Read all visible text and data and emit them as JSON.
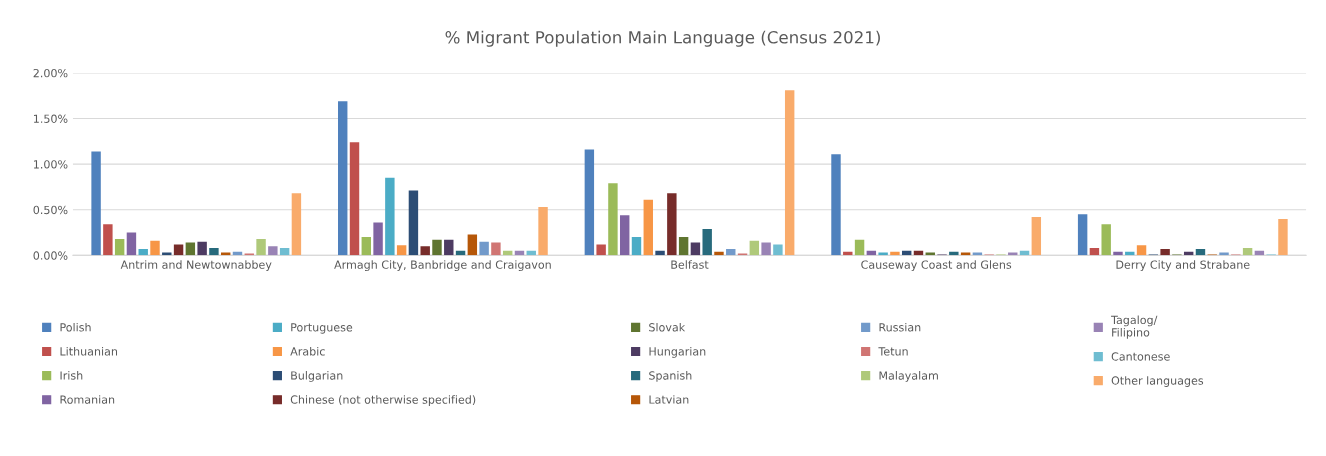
{
  "chart_data": {
    "type": "bar",
    "title": "% Migrant Population Main Language (Census 2021)",
    "categories": [
      "Antrim and Newtownabbey",
      "Armagh City, Banbridge and Craigavon",
      "Belfast",
      "Causeway Coast and Glens",
      "Derry City and Strabane"
    ],
    "ylim": [
      0,
      2.0
    ],
    "yticks": [
      {
        "value": 0,
        "label": "0.00%"
      },
      {
        "value": 0.5,
        "label": "0.50%"
      },
      {
        "value": 1.0,
        "label": "1.00%"
      },
      {
        "value": 1.5,
        "label": "1.50%"
      },
      {
        "value": 2.0,
        "label": "2.00%"
      }
    ],
    "grid": "y",
    "legend": "bottom",
    "series": [
      {
        "name": "Polish",
        "color": "#4f81bd",
        "values": [
          1.14,
          1.69,
          1.16,
          1.11,
          0.45
        ]
      },
      {
        "name": "Lithuanian",
        "color": "#c0504d",
        "values": [
          0.34,
          1.24,
          0.12,
          0.04,
          0.08
        ]
      },
      {
        "name": "Irish",
        "color": "#9bbb59",
        "values": [
          0.18,
          0.2,
          0.79,
          0.17,
          0.34
        ]
      },
      {
        "name": "Romanian",
        "color": "#8064a2",
        "values": [
          0.25,
          0.36,
          0.44,
          0.05,
          0.04
        ]
      },
      {
        "name": "Portuguese",
        "color": "#4bacc6",
        "values": [
          0.07,
          0.85,
          0.2,
          0.03,
          0.04
        ]
      },
      {
        "name": "Arabic",
        "color": "#f79646",
        "values": [
          0.16,
          0.11,
          0.61,
          0.04,
          0.11
        ]
      },
      {
        "name": "Bulgarian",
        "color": "#2c4d75",
        "values": [
          0.03,
          0.71,
          0.05,
          0.05,
          0.01
        ]
      },
      {
        "name": "Chinese (not otherwise specified)",
        "color": "#772c2a",
        "values": [
          0.12,
          0.1,
          0.68,
          0.05,
          0.07
        ]
      },
      {
        "name": "Slovak",
        "color": "#5f7530",
        "values": [
          0.14,
          0.17,
          0.2,
          0.03,
          0.01
        ]
      },
      {
        "name": "Hungarian",
        "color": "#4d3b62",
        "values": [
          0.15,
          0.17,
          0.14,
          0.01,
          0.04
        ]
      },
      {
        "name": "Spanish",
        "color": "#276a7c",
        "values": [
          0.08,
          0.05,
          0.29,
          0.04,
          0.07
        ]
      },
      {
        "name": "Latvian",
        "color": "#b65708",
        "values": [
          0.03,
          0.23,
          0.04,
          0.03,
          0.01
        ]
      },
      {
        "name": "Russian",
        "color": "#729aca",
        "values": [
          0.04,
          0.15,
          0.07,
          0.03,
          0.03
        ]
      },
      {
        "name": "Tetun",
        "color": "#d07573",
        "values": [
          0.02,
          0.14,
          0.02,
          0.01,
          0.01
        ]
      },
      {
        "name": "Malayalam",
        "color": "#afc97a",
        "values": [
          0.18,
          0.05,
          0.16,
          0.01,
          0.08
        ]
      },
      {
        "name": "Tagalog/\nFilipino",
        "color": "#9983b5",
        "values": [
          0.1,
          0.05,
          0.14,
          0.03,
          0.05
        ]
      },
      {
        "name": "Cantonese",
        "color": "#6fbdd1",
        "values": [
          0.08,
          0.05,
          0.12,
          0.05,
          0.01
        ]
      },
      {
        "name": "Other languages",
        "color": "#f9ab6b",
        "values": [
          0.68,
          0.53,
          1.81,
          0.42,
          0.4
        ]
      }
    ]
  }
}
